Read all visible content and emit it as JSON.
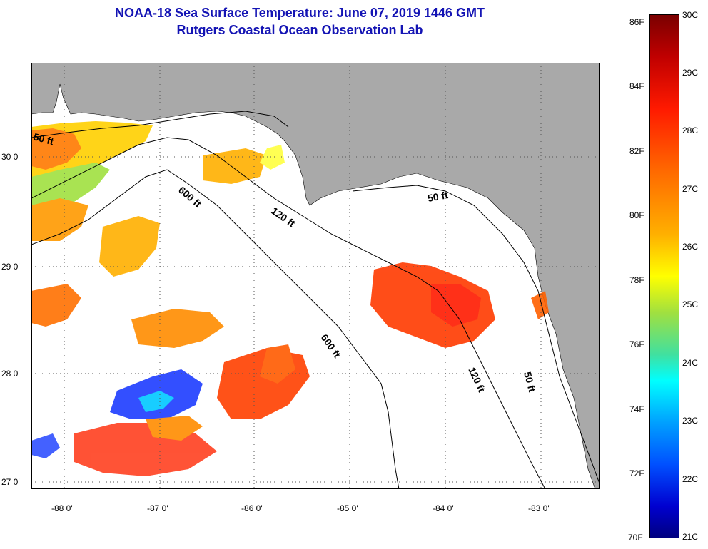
{
  "title": {
    "line1": "NOAA-18 Sea Surface Temperature:  June 07, 2019 1446 GMT",
    "line2": "Rutgers Coastal Ocean Observation Lab"
  },
  "map": {
    "lon_ticks": [
      "-88 0'",
      "-87 0'",
      "-86 0'",
      "-85 0'",
      "-84 0'",
      "-83 0'"
    ],
    "lat_ticks": [
      "30 0'",
      "29 0'",
      "28 0'",
      "27 0'"
    ],
    "contour_labels": [
      "50 ft",
      "600 ft",
      "120 ft",
      "50 ft",
      "600 ft",
      "120 ft",
      "50 ft"
    ],
    "land_color": "#a9a9a9",
    "ocean_color": "#ffffff"
  },
  "colorbar": {
    "fahrenheit": [
      "86F",
      "84F",
      "82F",
      "80F",
      "78F",
      "76F",
      "74F",
      "72F",
      "70F"
    ],
    "celsius": [
      "30C",
      "29C",
      "28C",
      "27C",
      "26C",
      "25C",
      "24C",
      "23C",
      "22C",
      "21C"
    ]
  }
}
